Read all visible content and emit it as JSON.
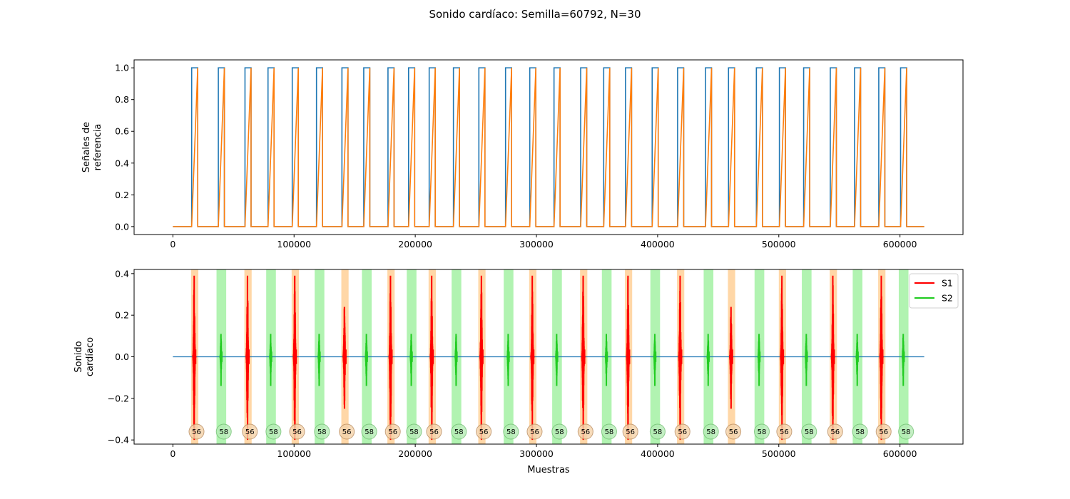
{
  "title": "Sonido cardíaco: Semilla=60792, N=30",
  "colors": {
    "ref_blue": "#1f77b4",
    "ref_orange": "#ff7f0e",
    "s1": "#ff0000",
    "s2": "#22cc22",
    "s1_band": "#ffc98a",
    "s2_band": "#90ee90",
    "baseline": "#1f77b4"
  },
  "chart_data": [
    {
      "type": "line",
      "ylabel": [
        "Señales de",
        "referencia"
      ],
      "xlabel": "",
      "xlim": [
        -32000,
        652000
      ],
      "ylim": [
        -0.05,
        1.05
      ],
      "xticks": [
        "0",
        "100000",
        "200000",
        "300000",
        "400000",
        "500000",
        "600000"
      ],
      "yticks": [
        "0.0",
        "0.2",
        "0.4",
        "0.6",
        "0.8",
        "1.0"
      ],
      "series": [
        {
          "type": "pulse",
          "description": "binary reference 1",
          "color_key": "ref_blue"
        },
        {
          "type": "ramp",
          "description": "ramp reference 2",
          "color_key": "ref_orange"
        }
      ]
    },
    {
      "type": "line",
      "ylabel": [
        "Sonido",
        "cardíaco"
      ],
      "xlabel": "Muestras",
      "xlim": [
        -32000,
        652000
      ],
      "ylim": [
        -0.42,
        0.42
      ],
      "xticks": [
        "0",
        "100000",
        "200000",
        "300000",
        "400000",
        "500000",
        "600000"
      ],
      "yticks": [
        "−0.4",
        "−0.2",
        "0.0",
        "0.2",
        "0.4"
      ],
      "legend": {
        "position": "top-right",
        "entries": [
          {
            "name": "S1",
            "color_key": "s1"
          },
          {
            "name": "S2",
            "color_key": "s2"
          }
        ]
      },
      "events": [
        {
          "type": "S1",
          "x": 18000,
          "amp": 0.39,
          "label": "56"
        },
        {
          "type": "S2",
          "x": 40000,
          "amp": 0.11,
          "label": "58"
        },
        {
          "type": "S1",
          "x": 62000,
          "amp": 0.39,
          "label": "56"
        },
        {
          "type": "S2",
          "x": 81000,
          "amp": 0.11,
          "label": "58"
        },
        {
          "type": "S1",
          "x": 101000,
          "amp": 0.39,
          "label": "56"
        },
        {
          "type": "S2",
          "x": 121000,
          "amp": 0.11,
          "label": "58"
        },
        {
          "type": "S1",
          "x": 142000,
          "amp": 0.24,
          "label": "56"
        },
        {
          "type": "S2",
          "x": 160000,
          "amp": 0.11,
          "label": "58"
        },
        {
          "type": "S1",
          "x": 180000,
          "amp": 0.39,
          "label": "56"
        },
        {
          "type": "S2",
          "x": 197000,
          "amp": 0.11,
          "label": "58"
        },
        {
          "type": "S1",
          "x": 214000,
          "amp": 0.39,
          "label": "56"
        },
        {
          "type": "S2",
          "x": 234000,
          "amp": 0.11,
          "label": "58"
        },
        {
          "type": "S1",
          "x": 255000,
          "amp": 0.39,
          "label": "56"
        },
        {
          "type": "S2",
          "x": 277000,
          "amp": 0.11,
          "label": "58"
        },
        {
          "type": "S1",
          "x": 297000,
          "amp": 0.39,
          "label": "56"
        },
        {
          "type": "S2",
          "x": 317000,
          "amp": 0.11,
          "label": "58"
        },
        {
          "type": "S1",
          "x": 339000,
          "amp": 0.39,
          "label": "56"
        },
        {
          "type": "S2",
          "x": 358000,
          "amp": 0.11,
          "label": "58"
        },
        {
          "type": "S1",
          "x": 376000,
          "amp": 0.39,
          "label": "56"
        },
        {
          "type": "S2",
          "x": 398000,
          "amp": 0.11,
          "label": "58"
        },
        {
          "type": "S1",
          "x": 419000,
          "amp": 0.39,
          "label": "56"
        },
        {
          "type": "S2",
          "x": 442000,
          "amp": 0.11,
          "label": "58"
        },
        {
          "type": "S1",
          "x": 461000,
          "amp": 0.24,
          "label": "56"
        },
        {
          "type": "S2",
          "x": 484000,
          "amp": 0.11,
          "label": "58"
        },
        {
          "type": "S1",
          "x": 503000,
          "amp": 0.39,
          "label": "56"
        },
        {
          "type": "S2",
          "x": 523000,
          "amp": 0.11,
          "label": "58"
        },
        {
          "type": "S1",
          "x": 545000,
          "amp": 0.39,
          "label": "56"
        },
        {
          "type": "S2",
          "x": 565000,
          "amp": 0.11,
          "label": "58"
        },
        {
          "type": "S1",
          "x": 585000,
          "amp": 0.39,
          "label": "56"
        },
        {
          "type": "S2",
          "x": 603000,
          "amp": 0.11,
          "label": "58"
        }
      ]
    }
  ]
}
